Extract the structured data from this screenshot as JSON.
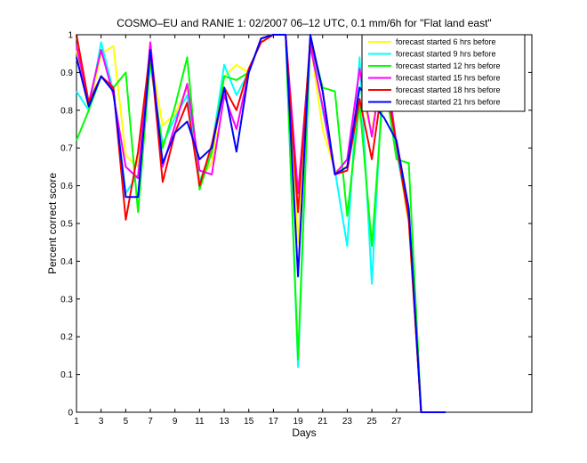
{
  "chart_data": {
    "type": "line",
    "title": "COSMO–EU and RANIE 1: 02/2007 06–12 UTC, 0.1 mm/6h for \"Flat land east\"",
    "xlabel": "Days",
    "ylabel": "Percent correct score",
    "xlim": [
      1,
      38
    ],
    "ylim": [
      0,
      1
    ],
    "x_ticks": [
      1,
      3,
      5,
      7,
      9,
      11,
      13,
      15,
      17,
      19,
      21,
      23,
      25,
      27
    ],
    "y_ticks": [
      0,
      0.1,
      0.2,
      0.3,
      0.4,
      0.5,
      0.6,
      0.7,
      0.8,
      0.9,
      1
    ],
    "y_tick_labels": [
      "0",
      "0.1",
      "0.2",
      "0.3",
      "0.4",
      "0.5",
      "0.6",
      "0.7",
      "0.8",
      "0.9",
      "1"
    ],
    "legend_position": "top-right",
    "grid": false,
    "x": [
      1,
      2,
      3,
      4,
      5,
      6,
      7,
      8,
      9,
      10,
      11,
      12,
      13,
      14,
      15,
      16,
      17,
      18,
      19,
      20,
      21,
      22,
      23,
      24,
      25,
      26,
      27,
      28,
      29,
      30,
      31
    ],
    "series": [
      {
        "name": "forecast started 6 hrs before",
        "color": "#ffff00",
        "values": [
          0.96,
          0.8,
          0.95,
          0.97,
          0.68,
          0.65,
          0.95,
          0.76,
          0.79,
          0.86,
          0.62,
          0.66,
          0.89,
          0.92,
          0.9,
          0.99,
          1,
          1,
          0.45,
          0.98,
          0.75,
          0.64,
          0.65,
          0.86,
          0.74,
          0.98,
          0.7,
          0.5,
          0,
          0,
          0
        ]
      },
      {
        "name": "forecast started 9 hrs before",
        "color": "#00ffff",
        "values": [
          0.85,
          0.8,
          0.98,
          0.85,
          0.58,
          0.63,
          0.92,
          0.71,
          0.78,
          0.84,
          0.61,
          0.7,
          0.92,
          0.84,
          0.9,
          0.99,
          1,
          1,
          0.12,
          0.99,
          0.8,
          0.64,
          0.44,
          0.94,
          0.34,
          0.96,
          0.69,
          0.52,
          0,
          0,
          0
        ]
      },
      {
        "name": "forecast started 12 hrs before",
        "color": "#00ff00",
        "values": [
          0.72,
          0.8,
          0.89,
          0.86,
          0.9,
          0.53,
          0.93,
          0.7,
          0.81,
          0.94,
          0.59,
          0.69,
          0.89,
          0.88,
          0.9,
          0.99,
          1,
          1,
          0.14,
          0.99,
          0.86,
          0.85,
          0.52,
          0.82,
          0.44,
          0.89,
          0.67,
          0.66,
          0,
          0,
          0
        ]
      },
      {
        "name": "forecast started 15 hrs before",
        "color": "#ff00ff",
        "values": [
          0.97,
          0.82,
          0.96,
          0.84,
          0.65,
          0.62,
          0.98,
          0.65,
          0.76,
          0.87,
          0.64,
          0.63,
          0.84,
          0.75,
          0.9,
          0.99,
          1,
          1,
          0.58,
          0.97,
          0.81,
          0.63,
          0.67,
          0.91,
          0.73,
          0.95,
          0.71,
          0.52,
          0,
          0,
          0
        ]
      },
      {
        "name": "forecast started 18 hrs before",
        "color": "#ff0000",
        "values": [
          1,
          0.82,
          0.89,
          0.86,
          0.51,
          0.69,
          0.96,
          0.61,
          0.74,
          0.82,
          0.6,
          0.71,
          0.86,
          0.8,
          0.91,
          0.98,
          1,
          1,
          0.53,
          0.99,
          0.85,
          0.63,
          0.64,
          0.83,
          0.67,
          0.9,
          0.71,
          0.51,
          0,
          0,
          0
        ]
      },
      {
        "name": "forecast started 21 hrs before",
        "color": "#0000ff",
        "values": [
          0.94,
          0.81,
          0.89,
          0.85,
          0.57,
          0.57,
          0.96,
          0.66,
          0.74,
          0.77,
          0.67,
          0.7,
          0.86,
          0.69,
          0.9,
          0.99,
          1,
          1,
          0.36,
          1,
          0.85,
          0.63,
          0.65,
          0.86,
          0.82,
          0.78,
          0.72,
          0.54,
          0,
          0,
          0
        ]
      }
    ]
  }
}
